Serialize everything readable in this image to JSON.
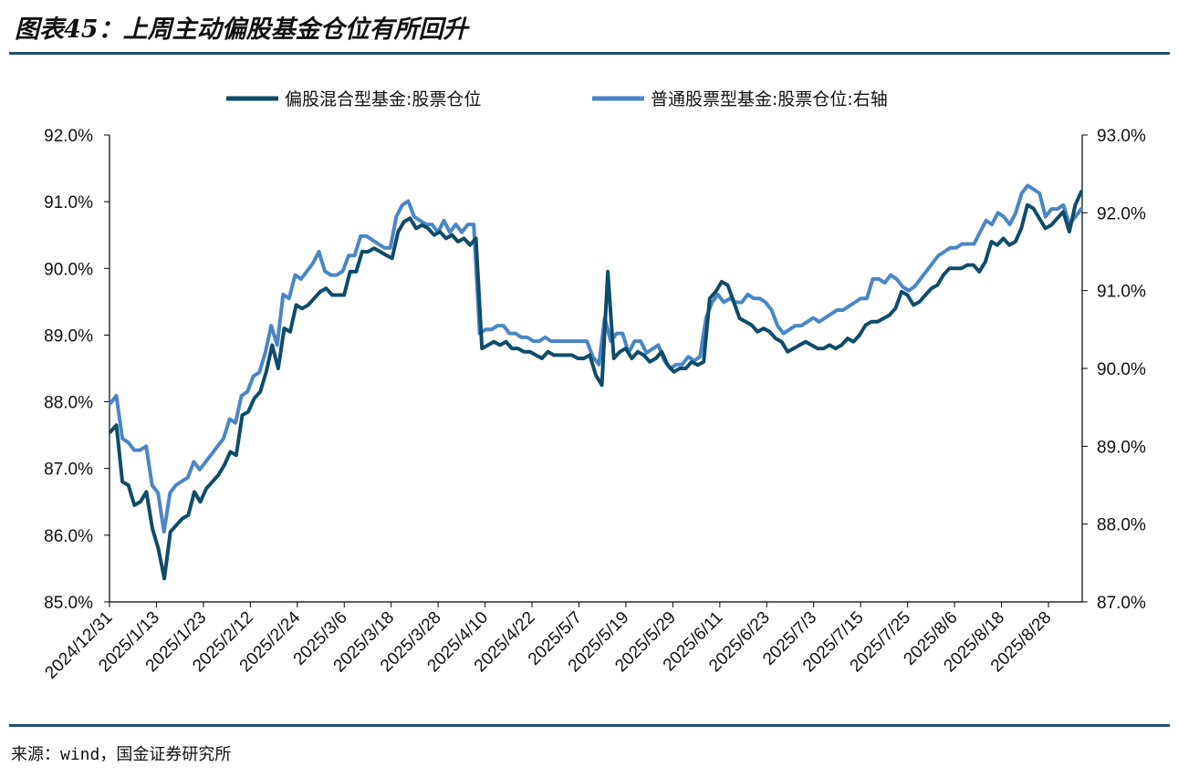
{
  "figure": {
    "title": "图表45：上周主动偏股基金仓位有所回升",
    "source": "来源：wind，国金证券研究所"
  },
  "colors": {
    "series_left": "#0f4c6b",
    "series_right": "#4a86c5",
    "rule": "#1f4e6e",
    "axis": "#000000"
  },
  "chart_data": {
    "type": "line",
    "legend_position": "top-center",
    "grid": false,
    "x_tick_labels": [
      "2024/12/31",
      "2025/1/13",
      "2025/1/23",
      "2025/2/12",
      "2025/2/24",
      "2025/3/6",
      "2025/3/18",
      "2025/3/28",
      "2025/4/10",
      "2025/4/22",
      "2025/5/7",
      "2025/5/19",
      "2025/5/29",
      "2025/6/11",
      "2025/6/23",
      "2025/7/3",
      "2025/7/15",
      "2025/7/25",
      "2025/8/6",
      "2025/8/18",
      "2025/8/28"
    ],
    "y_left": {
      "min": 85.0,
      "max": 92.0,
      "ticks": [
        "85.0%",
        "86.0%",
        "87.0%",
        "88.0%",
        "89.0%",
        "90.0%",
        "91.0%",
        "92.0%"
      ]
    },
    "y_right": {
      "min": 87.0,
      "max": 93.0,
      "ticks": [
        "87.0%",
        "88.0%",
        "89.0%",
        "90.0%",
        "91.0%",
        "92.0%",
        "93.0%"
      ]
    },
    "series": [
      {
        "name": "偏股混合型基金:股票仓位",
        "axis": "left",
        "values": [
          87.55,
          87.65,
          86.8,
          86.75,
          86.45,
          86.5,
          86.65,
          86.1,
          85.8,
          85.35,
          86.05,
          86.15,
          86.25,
          86.3,
          86.65,
          86.5,
          86.7,
          86.8,
          86.9,
          87.05,
          87.25,
          87.2,
          87.8,
          87.85,
          88.05,
          88.15,
          88.45,
          88.85,
          88.5,
          89.1,
          89.05,
          89.45,
          89.4,
          89.45,
          89.55,
          89.65,
          89.7,
          89.6,
          89.6,
          89.6,
          89.95,
          89.95,
          90.25,
          90.25,
          90.3,
          90.25,
          90.2,
          90.15,
          90.55,
          90.7,
          90.75,
          90.6,
          90.65,
          90.6,
          90.5,
          90.55,
          90.45,
          90.5,
          90.4,
          90.45,
          90.35,
          90.45,
          88.8,
          88.85,
          88.9,
          88.85,
          88.9,
          88.8,
          88.8,
          88.75,
          88.75,
          88.7,
          88.65,
          88.75,
          88.7,
          88.7,
          88.7,
          88.7,
          88.65,
          88.65,
          88.7,
          88.4,
          88.25,
          89.95,
          88.65,
          88.75,
          88.8,
          88.65,
          88.75,
          88.7,
          88.6,
          88.65,
          88.75,
          88.55,
          88.45,
          88.5,
          88.5,
          88.6,
          88.55,
          88.6,
          89.55,
          89.65,
          89.8,
          89.75,
          89.5,
          89.25,
          89.2,
          89.15,
          89.05,
          89.1,
          89.05,
          88.95,
          88.9,
          88.75,
          88.8,
          88.85,
          88.9,
          88.85,
          88.8,
          88.8,
          88.85,
          88.8,
          88.85,
          88.95,
          88.9,
          89.0,
          89.15,
          89.2,
          89.2,
          89.25,
          89.3,
          89.4,
          89.65,
          89.6,
          89.45,
          89.5,
          89.6,
          89.7,
          89.75,
          89.9,
          90.0,
          90.0,
          90.0,
          90.05,
          90.05,
          89.95,
          90.1,
          90.4,
          90.35,
          90.45,
          90.35,
          90.4,
          90.6,
          90.95,
          90.9,
          90.75,
          90.6,
          90.65,
          90.75,
          90.85,
          90.55,
          90.95,
          91.15
        ]
      },
      {
        "name": "普通股票型基金:股票仓位:右轴",
        "axis": "right",
        "values": [
          89.55,
          89.65,
          89.1,
          89.05,
          88.95,
          88.95,
          89.0,
          88.5,
          88.4,
          87.9,
          88.4,
          88.5,
          88.55,
          88.6,
          88.8,
          88.7,
          88.8,
          88.9,
          89.0,
          89.1,
          89.35,
          89.3,
          89.65,
          89.7,
          89.9,
          89.95,
          90.2,
          90.55,
          90.3,
          90.95,
          90.9,
          91.2,
          91.15,
          91.25,
          91.35,
          91.5,
          91.25,
          91.2,
          91.2,
          91.25,
          91.45,
          91.45,
          91.7,
          91.7,
          91.65,
          91.6,
          91.55,
          91.55,
          91.95,
          92.1,
          92.15,
          91.95,
          91.9,
          91.85,
          91.85,
          91.75,
          91.9,
          91.75,
          91.85,
          91.75,
          91.85,
          91.85,
          90.45,
          90.5,
          90.5,
          90.55,
          90.55,
          90.45,
          90.45,
          90.4,
          90.4,
          90.35,
          90.35,
          90.4,
          90.35,
          90.35,
          90.35,
          90.35,
          90.35,
          90.35,
          90.35,
          90.15,
          90.05,
          90.65,
          90.35,
          90.45,
          90.45,
          90.2,
          90.35,
          90.35,
          90.2,
          90.25,
          90.3,
          90.1,
          90.0,
          90.05,
          90.05,
          90.15,
          90.1,
          90.15,
          90.65,
          90.85,
          90.95,
          90.85,
          90.9,
          90.85,
          90.85,
          90.95,
          90.9,
          90.9,
          90.85,
          90.75,
          90.55,
          90.45,
          90.5,
          90.55,
          90.55,
          90.6,
          90.65,
          90.6,
          90.65,
          90.7,
          90.75,
          90.75,
          90.8,
          90.85,
          90.9,
          90.9,
          91.15,
          91.15,
          91.1,
          91.2,
          91.15,
          91.05,
          91.0,
          91.05,
          91.15,
          91.25,
          91.35,
          91.45,
          91.5,
          91.55,
          91.55,
          91.6,
          91.6,
          91.6,
          91.75,
          91.9,
          91.85,
          92.0,
          91.95,
          91.85,
          92.0,
          92.25,
          92.35,
          92.3,
          92.25,
          91.95,
          92.05,
          92.05,
          92.1,
          91.85,
          91.95,
          92.05
        ]
      }
    ]
  }
}
